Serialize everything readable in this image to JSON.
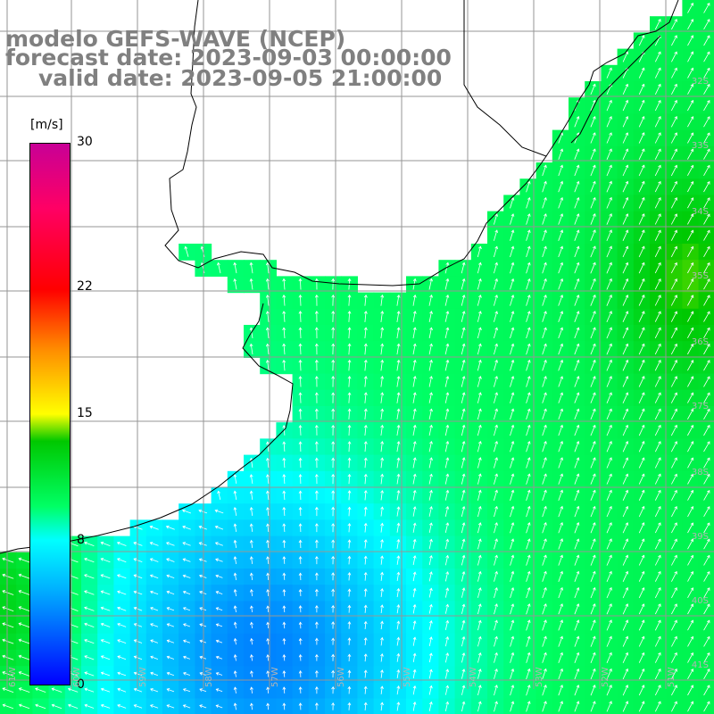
{
  "title": {
    "line1": "modelo GEFS-WAVE (NCEP)",
    "line2": "forecast date: 2023-09-03 00:00:00",
    "line3": "valid date: 2023-09-05 21:00:00"
  },
  "colorbar": {
    "unit": "[m/s]",
    "ticks": [
      "30",
      "22",
      "15",
      "8",
      "0"
    ],
    "tick_values": [
      30,
      22,
      15,
      8,
      0
    ],
    "min": 0,
    "max": 30,
    "colors": [
      "#0000ff",
      "#00b4ff",
      "#00ffff",
      "#00ff64",
      "#00c800",
      "#ffff00",
      "#ff8c00",
      "#ff0000",
      "#c80096"
    ]
  },
  "lat_labels": [
    "32S",
    "33S",
    "34S",
    "35S",
    "36S",
    "37S",
    "38S",
    "39S",
    "40S",
    "41S"
  ],
  "lon_labels": [
    "61W",
    "60W",
    "59W",
    "58W",
    "57W",
    "56W",
    "55W",
    "54W",
    "53W",
    "52W",
    "51W"
  ],
  "map": {
    "lon_range": [
      -61.8,
      -50.8
    ],
    "lat_range": [
      -41.4,
      -31.3
    ],
    "field": "wind speed with direction arrows",
    "land_color": "#ffffff",
    "coast_color": "#000000",
    "grid_color": "#969696"
  }
}
